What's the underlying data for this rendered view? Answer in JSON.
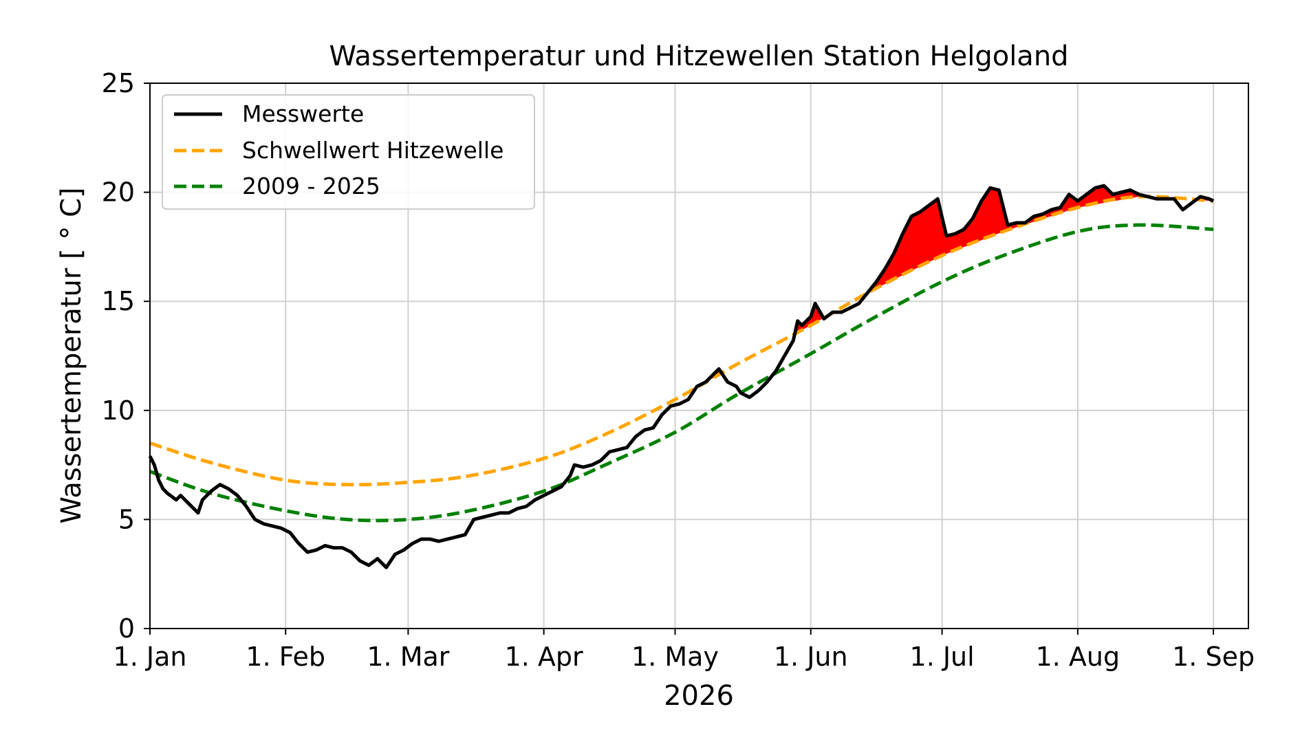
{
  "chart_data": {
    "type": "line",
    "title": "Wassertemperatur und Hitzewellen Station Helgoland",
    "xlabel": "2026",
    "ylabel": "Wassertemperatur [$^\\circ$C]",
    "ylabel_display": "Wassertemperatur [ ° C]",
    "x_unit": "date",
    "xlim": [
      "2026-01-01",
      "2026-09-09"
    ],
    "ylim": [
      0,
      25
    ],
    "yticks": [
      0,
      5,
      10,
      15,
      20,
      25
    ],
    "xticks": [
      {
        "date": "2026-01-01",
        "label": "1. Jan"
      },
      {
        "date": "2026-02-01",
        "label": "1. Feb"
      },
      {
        "date": "2026-03-01",
        "label": "1. Mar"
      },
      {
        "date": "2026-04-01",
        "label": "1. Apr"
      },
      {
        "date": "2026-05-01",
        "label": "1. May"
      },
      {
        "date": "2026-06-01",
        "label": "1. Jun"
      },
      {
        "date": "2026-07-01",
        "label": "1. Jul"
      },
      {
        "date": "2026-08-01",
        "label": "1. Aug"
      },
      {
        "date": "2026-09-01",
        "label": "1. Sep"
      }
    ],
    "grid": true,
    "legend": {
      "position": "top-left",
      "entries": [
        "Messwerte",
        "Schwellwert Hitzewelle",
        "2009 - 2025"
      ]
    },
    "heatwave_fill_color": "#ff0000",
    "series": [
      {
        "name": "Messwerte",
        "color": "#000000",
        "style": "solid",
        "points": [
          [
            "2026-01-01",
            7.9
          ],
          [
            "2026-01-02",
            7.5
          ],
          [
            "2026-01-03",
            6.8
          ],
          [
            "2026-01-04",
            6.4
          ],
          [
            "2026-01-05",
            6.2
          ],
          [
            "2026-01-07",
            5.9
          ],
          [
            "2026-01-08",
            6.1
          ],
          [
            "2026-01-10",
            5.7
          ],
          [
            "2026-01-12",
            5.3
          ],
          [
            "2026-01-13",
            5.9
          ],
          [
            "2026-01-15",
            6.3
          ],
          [
            "2026-01-17",
            6.6
          ],
          [
            "2026-01-19",
            6.4
          ],
          [
            "2026-01-21",
            6.1
          ],
          [
            "2026-01-23",
            5.6
          ],
          [
            "2026-01-25",
            5.0
          ],
          [
            "2026-01-27",
            4.8
          ],
          [
            "2026-01-29",
            4.7
          ],
          [
            "2026-01-31",
            4.6
          ],
          [
            "2026-02-02",
            4.4
          ],
          [
            "2026-02-04",
            3.9
          ],
          [
            "2026-02-06",
            3.5
          ],
          [
            "2026-02-08",
            3.6
          ],
          [
            "2026-02-10",
            3.8
          ],
          [
            "2026-02-12",
            3.7
          ],
          [
            "2026-02-14",
            3.7
          ],
          [
            "2026-02-16",
            3.5
          ],
          [
            "2026-02-18",
            3.1
          ],
          [
            "2026-02-20",
            2.9
          ],
          [
            "2026-02-22",
            3.2
          ],
          [
            "2026-02-24",
            2.8
          ],
          [
            "2026-02-26",
            3.4
          ],
          [
            "2026-02-28",
            3.6
          ],
          [
            "2026-03-02",
            3.9
          ],
          [
            "2026-03-04",
            4.1
          ],
          [
            "2026-03-06",
            4.1
          ],
          [
            "2026-03-08",
            4.0
          ],
          [
            "2026-03-10",
            4.1
          ],
          [
            "2026-03-12",
            4.2
          ],
          [
            "2026-03-14",
            4.3
          ],
          [
            "2026-03-16",
            5.0
          ],
          [
            "2026-03-18",
            5.1
          ],
          [
            "2026-03-20",
            5.2
          ],
          [
            "2026-03-22",
            5.3
          ],
          [
            "2026-03-24",
            5.3
          ],
          [
            "2026-03-26",
            5.5
          ],
          [
            "2026-03-28",
            5.6
          ],
          [
            "2026-03-30",
            5.9
          ],
          [
            "2026-04-01",
            6.1
          ],
          [
            "2026-04-03",
            6.3
          ],
          [
            "2026-04-05",
            6.5
          ],
          [
            "2026-04-07",
            7.0
          ],
          [
            "2026-04-08",
            7.5
          ],
          [
            "2026-04-10",
            7.4
          ],
          [
            "2026-04-12",
            7.5
          ],
          [
            "2026-04-14",
            7.7
          ],
          [
            "2026-04-16",
            8.1
          ],
          [
            "2026-04-18",
            8.2
          ],
          [
            "2026-04-20",
            8.3
          ],
          [
            "2026-04-22",
            8.8
          ],
          [
            "2026-04-24",
            9.1
          ],
          [
            "2026-04-26",
            9.2
          ],
          [
            "2026-04-28",
            9.8
          ],
          [
            "2026-04-30",
            10.2
          ],
          [
            "2026-05-02",
            10.3
          ],
          [
            "2026-05-04",
            10.5
          ],
          [
            "2026-05-06",
            11.1
          ],
          [
            "2026-05-08",
            11.3
          ],
          [
            "2026-05-10",
            11.7
          ],
          [
            "2026-05-11",
            11.9
          ],
          [
            "2026-05-13",
            11.3
          ],
          [
            "2026-05-15",
            11.1
          ],
          [
            "2026-05-16",
            10.8
          ],
          [
            "2026-05-18",
            10.6
          ],
          [
            "2026-05-20",
            10.9
          ],
          [
            "2026-05-22",
            11.3
          ],
          [
            "2026-05-24",
            11.8
          ],
          [
            "2026-05-26",
            12.5
          ],
          [
            "2026-05-28",
            13.2
          ],
          [
            "2026-05-29",
            14.1
          ],
          [
            "2026-05-30",
            13.9
          ],
          [
            "2026-06-01",
            14.3
          ],
          [
            "2026-06-02",
            14.9
          ],
          [
            "2026-06-04",
            14.2
          ],
          [
            "2026-06-06",
            14.5
          ],
          [
            "2026-06-08",
            14.5
          ],
          [
            "2026-06-10",
            14.7
          ],
          [
            "2026-06-12",
            14.9
          ],
          [
            "2026-06-14",
            15.4
          ],
          [
            "2026-06-16",
            15.9
          ],
          [
            "2026-06-18",
            16.5
          ],
          [
            "2026-06-20",
            17.2
          ],
          [
            "2026-06-22",
            18.1
          ],
          [
            "2026-06-24",
            18.9
          ],
          [
            "2026-06-26",
            19.1
          ],
          [
            "2026-06-28",
            19.4
          ],
          [
            "2026-06-30",
            19.7
          ],
          [
            "2026-07-02",
            18.0
          ],
          [
            "2026-07-04",
            18.1
          ],
          [
            "2026-07-06",
            18.3
          ],
          [
            "2026-07-08",
            18.8
          ],
          [
            "2026-07-10",
            19.6
          ],
          [
            "2026-07-12",
            20.2
          ],
          [
            "2026-07-14",
            20.1
          ],
          [
            "2026-07-16",
            18.5
          ],
          [
            "2026-07-18",
            18.6
          ],
          [
            "2026-07-20",
            18.6
          ],
          [
            "2026-07-22",
            18.9
          ],
          [
            "2026-07-24",
            19.0
          ],
          [
            "2026-07-26",
            19.2
          ],
          [
            "2026-07-28",
            19.3
          ],
          [
            "2026-07-30",
            19.9
          ],
          [
            "2026-08-01",
            19.6
          ],
          [
            "2026-08-03",
            19.9
          ],
          [
            "2026-08-05",
            20.2
          ],
          [
            "2026-08-07",
            20.3
          ],
          [
            "2026-08-09",
            19.9
          ],
          [
            "2026-08-11",
            20.0
          ],
          [
            "2026-08-13",
            20.1
          ],
          [
            "2026-08-15",
            19.9
          ],
          [
            "2026-08-17",
            19.8
          ],
          [
            "2026-08-19",
            19.7
          ],
          [
            "2026-08-21",
            19.7
          ],
          [
            "2026-08-23",
            19.7
          ],
          [
            "2026-08-25",
            19.2
          ],
          [
            "2026-08-27",
            19.5
          ],
          [
            "2026-08-29",
            19.8
          ],
          [
            "2026-08-31",
            19.7
          ],
          [
            "2026-09-01",
            19.6
          ]
        ]
      },
      {
        "name": "Schwellwert Hitzewelle",
        "color": "#ffa500",
        "style": "dashed",
        "points": [
          [
            "2026-01-01",
            8.5
          ],
          [
            "2026-01-15",
            7.6
          ],
          [
            "2026-02-01",
            6.8
          ],
          [
            "2026-02-15",
            6.6
          ],
          [
            "2026-03-01",
            6.7
          ],
          [
            "2026-03-15",
            7.0
          ],
          [
            "2026-04-01",
            7.8
          ],
          [
            "2026-04-15",
            8.9
          ],
          [
            "2026-05-01",
            10.5
          ],
          [
            "2026-05-15",
            12.1
          ],
          [
            "2026-06-01",
            13.9
          ],
          [
            "2026-06-15",
            15.5
          ],
          [
            "2026-07-01",
            17.1
          ],
          [
            "2026-07-15",
            18.2
          ],
          [
            "2026-08-01",
            19.3
          ],
          [
            "2026-08-15",
            19.8
          ],
          [
            "2026-09-01",
            19.6
          ]
        ]
      },
      {
        "name": "2009 - 2025",
        "color": "#008000",
        "style": "dashed",
        "points": [
          [
            "2026-01-01",
            7.2
          ],
          [
            "2026-01-15",
            6.2
          ],
          [
            "2026-02-01",
            5.4
          ],
          [
            "2026-02-15",
            5.0
          ],
          [
            "2026-03-01",
            5.0
          ],
          [
            "2026-03-15",
            5.4
          ],
          [
            "2026-04-01",
            6.3
          ],
          [
            "2026-04-15",
            7.5
          ],
          [
            "2026-05-01",
            9.0
          ],
          [
            "2026-05-15",
            10.7
          ],
          [
            "2026-06-01",
            12.6
          ],
          [
            "2026-06-15",
            14.2
          ],
          [
            "2026-07-01",
            15.9
          ],
          [
            "2026-07-15",
            17.1
          ],
          [
            "2026-08-01",
            18.2
          ],
          [
            "2026-08-15",
            18.5
          ],
          [
            "2026-09-01",
            18.3
          ]
        ]
      }
    ]
  }
}
